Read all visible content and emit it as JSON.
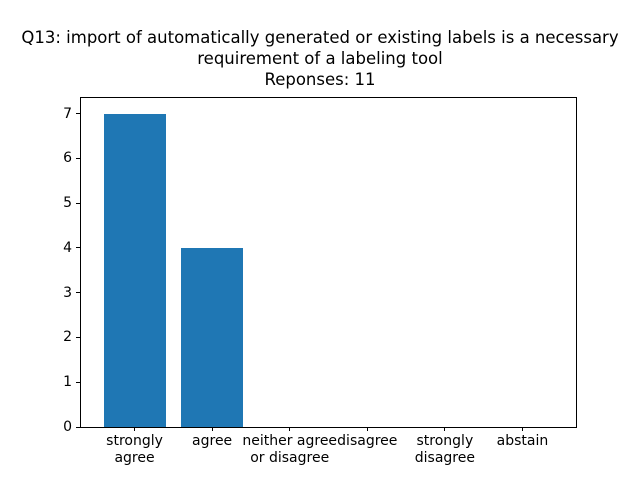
{
  "chart_data": {
    "type": "bar",
    "title": "Q13: import of automatically generated or existing labels is a necessary\nrequirement of a labeling tool",
    "subtitle": "Reponses: 11",
    "categories": [
      "strongly\nagree",
      "agree",
      "neither agree\nor disagree",
      "disagree",
      "strongly\ndisagree",
      "abstain"
    ],
    "values": [
      7,
      4,
      0,
      0,
      0,
      0
    ],
    "yticks": [
      0,
      1,
      2,
      3,
      4,
      5,
      6,
      7
    ],
    "ylim": [
      0,
      7.35
    ],
    "xlim": [
      -0.69,
      5.69
    ],
    "bar_width": 0.8,
    "bar_color": "#1f77b4",
    "axis_color": "#000000",
    "background_color": "#ffffff",
    "grid": false,
    "legend": null,
    "xlabel": "",
    "ylabel": ""
  }
}
